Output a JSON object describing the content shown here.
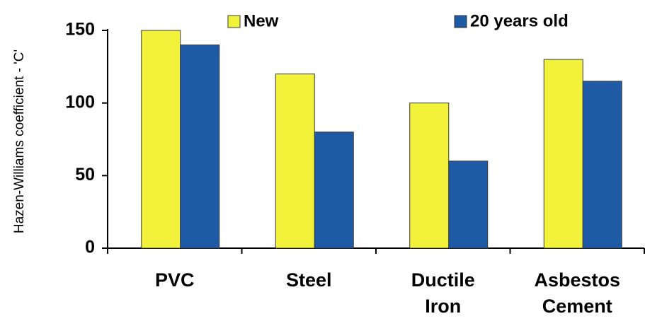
{
  "chart_data": {
    "type": "bar",
    "title": "",
    "xlabel": "",
    "ylabel": "Hazen-Williams coefficient - 'C'",
    "categories": [
      [
        "PVC"
      ],
      [
        "Steel"
      ],
      [
        "Ductile",
        "Iron"
      ],
      [
        "Asbestos",
        "Cement"
      ]
    ],
    "series": [
      {
        "name": "New",
        "values": [
          150,
          120,
          100,
          130
        ],
        "color": "#f2f23a"
      },
      {
        "name": "20 years old",
        "values": [
          140,
          80,
          60,
          115
        ],
        "color": "#1f5aa6"
      }
    ],
    "ylim": [
      0,
      150
    ],
    "yticks": [
      0,
      50,
      100,
      150
    ],
    "legend_position": "top",
    "grid": false
  }
}
